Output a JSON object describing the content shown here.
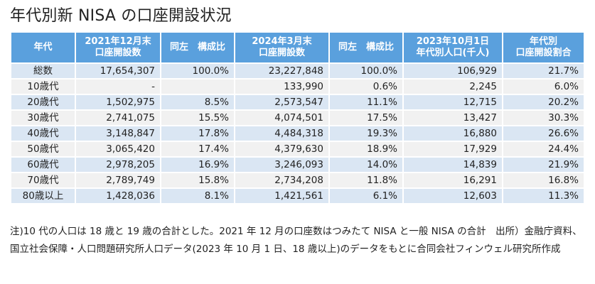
{
  "title": "年代別新 NISA の口座開設状況",
  "table": {
    "headers": [
      [
        "年代"
      ],
      [
        "2021年12月末",
        "口座開設数"
      ],
      [
        "同左　構成比"
      ],
      [
        "2024年3月末",
        "口座開設数"
      ],
      [
        "同左　構成比"
      ],
      [
        "2023年10月1日",
        "年代別人口(千人)"
      ],
      [
        "年代別",
        "口座開設割合"
      ]
    ],
    "rows": [
      [
        "総数",
        "17,654,307",
        "100.0%",
        "23,227,848",
        "100.0%",
        "106,929",
        "21.7%"
      ],
      [
        "10歳代",
        "-",
        "",
        "133,990",
        "0.6%",
        "2,245",
        "6.0%"
      ],
      [
        "20歳代",
        "1,502,975",
        "8.5%",
        "2,573,547",
        "11.1%",
        "12,715",
        "20.2%"
      ],
      [
        "30歳代",
        "2,741,075",
        "15.5%",
        "4,074,501",
        "17.5%",
        "13,427",
        "30.3%"
      ],
      [
        "40歳代",
        "3,148,847",
        "17.8%",
        "4,484,318",
        "19.3%",
        "16,880",
        "26.6%"
      ],
      [
        "50歳代",
        "3,065,420",
        "17.4%",
        "4,379,630",
        "18.9%",
        "17,929",
        "24.4%"
      ],
      [
        "60歳代",
        "2,978,205",
        "16.9%",
        "3,246,093",
        "14.0%",
        "14,839",
        "21.9%"
      ],
      [
        "70歳代",
        "2,789,749",
        "15.8%",
        "2,734,208",
        "11.8%",
        "16,291",
        "16.8%"
      ],
      [
        "80歳以上",
        "1,428,036",
        "8.1%",
        "1,421,561",
        "6.1%",
        "12,603",
        "11.3%"
      ]
    ]
  },
  "note": "注)10 代の人口は 18 歳と 19 歳の合計とした。2021 年 12 月の口座数はつみたて NISA と一般 NISA の合計　出所）金融庁資料、国立社会保障・人口問題研究所人口データ(2023 年 10 月 1 日、18 歳以上)のデータをもとに合同会社フィンウェル研究所作成",
  "colors": {
    "header_bg": "#5aa0dd",
    "row_band_a": "#dae6f3",
    "row_band_b": "#f1f1f1"
  }
}
